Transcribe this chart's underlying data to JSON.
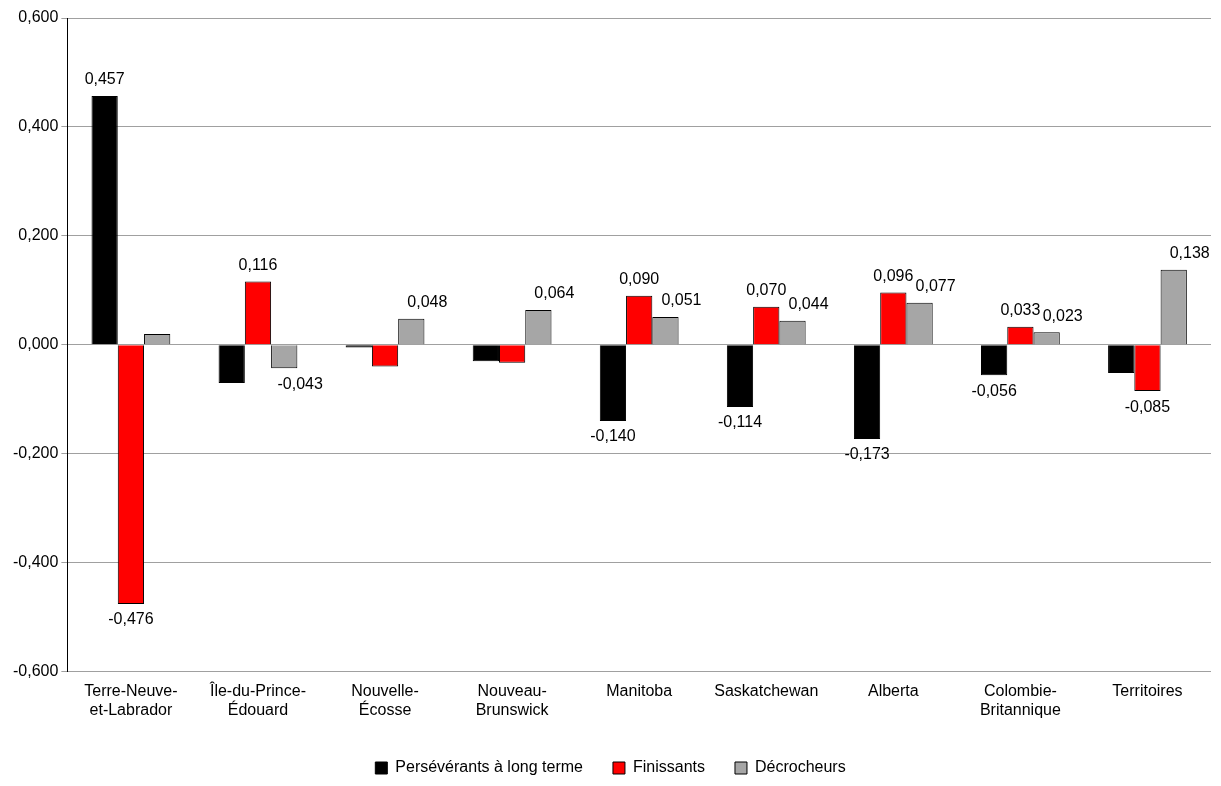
{
  "chart_data": {
    "type": "bar",
    "categories": [
      "Terre-Neuve-et-Labrador",
      "Île-du-Prince-Édouard",
      "Nouvelle-Écosse",
      "Nouveau-Brunswick",
      "Manitoba",
      "Saskatchewan",
      "Alberta",
      "Colombie-Britannique",
      "Territoires"
    ],
    "series": [
      {
        "name": "Persévérants à long terme",
        "color": "#000000",
        "values": [
          0.457,
          -0.07,
          -0.005,
          -0.03,
          -0.14,
          -0.114,
          -0.173,
          -0.056,
          -0.052
        ],
        "value_labels": [
          "0,457",
          null,
          null,
          null,
          "-0,140",
          "-0,114",
          "-0,173",
          "-0,056",
          null
        ]
      },
      {
        "name": "Finissants",
        "color": "#ff0000",
        "values": [
          -0.476,
          0.116,
          -0.04,
          -0.033,
          0.09,
          0.07,
          0.096,
          0.033,
          -0.085
        ],
        "value_labels": [
          "-0,476",
          "0,116",
          null,
          null,
          "0,090",
          "0,070",
          "0,096",
          "0,033",
          "-0,085"
        ]
      },
      {
        "name": "Décrocheurs",
        "color": "#a6a6a6",
        "values": [
          0.02,
          -0.043,
          0.048,
          0.064,
          0.051,
          0.044,
          0.077,
          0.023,
          0.138
        ],
        "value_labels": [
          null,
          "-0,043",
          "0,048",
          "0,064",
          "0,051",
          "0,044",
          "0,077",
          "0,023",
          "0,138"
        ]
      }
    ],
    "ylim": [
      -0.6,
      0.6
    ],
    "yticks": [
      {
        "value": -0.6,
        "label": "-0,600"
      },
      {
        "value": -0.4,
        "label": "-0,400"
      },
      {
        "value": -0.2,
        "label": "-0,200"
      },
      {
        "value": 0,
        "label": "0,000"
      },
      {
        "value": 0.2,
        "label": "0,200"
      },
      {
        "value": 0.4,
        "label": "0,400"
      },
      {
        "value": 0.6,
        "label": "0,600"
      }
    ],
    "grid": "y",
    "legend": "bottom"
  }
}
